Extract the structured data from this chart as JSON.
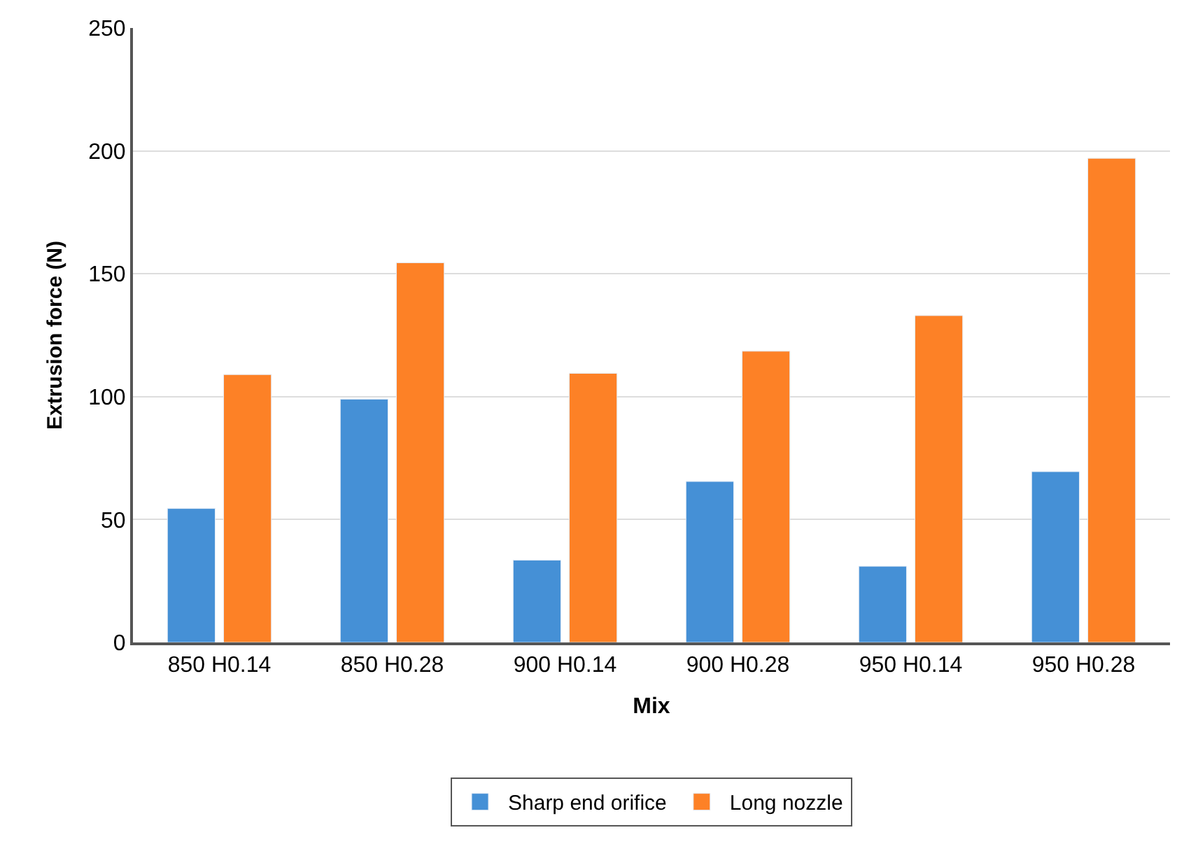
{
  "chart_data": {
    "type": "bar",
    "xlabel": "Mix",
    "ylabel": "Extrusion force (N)",
    "categories": [
      "850 H0.14",
      "850 H0.28",
      "900 H0.14",
      "900 H0.28",
      "950 H0.14",
      "950 H0.28"
    ],
    "series": [
      {
        "name": "Sharp end orifice",
        "color": "#4590d6",
        "values": [
          54.5,
          99,
          33.5,
          65.5,
          31,
          69.5
        ]
      },
      {
        "name": "Long nozzle",
        "color": "#fd8126",
        "values": [
          109,
          154.5,
          109.5,
          118.5,
          133,
          197
        ]
      }
    ],
    "ylim": [
      0,
      250
    ],
    "yticks": [
      0,
      50,
      100,
      150,
      200,
      250
    ],
    "grid": "y",
    "legend": "bottom"
  }
}
